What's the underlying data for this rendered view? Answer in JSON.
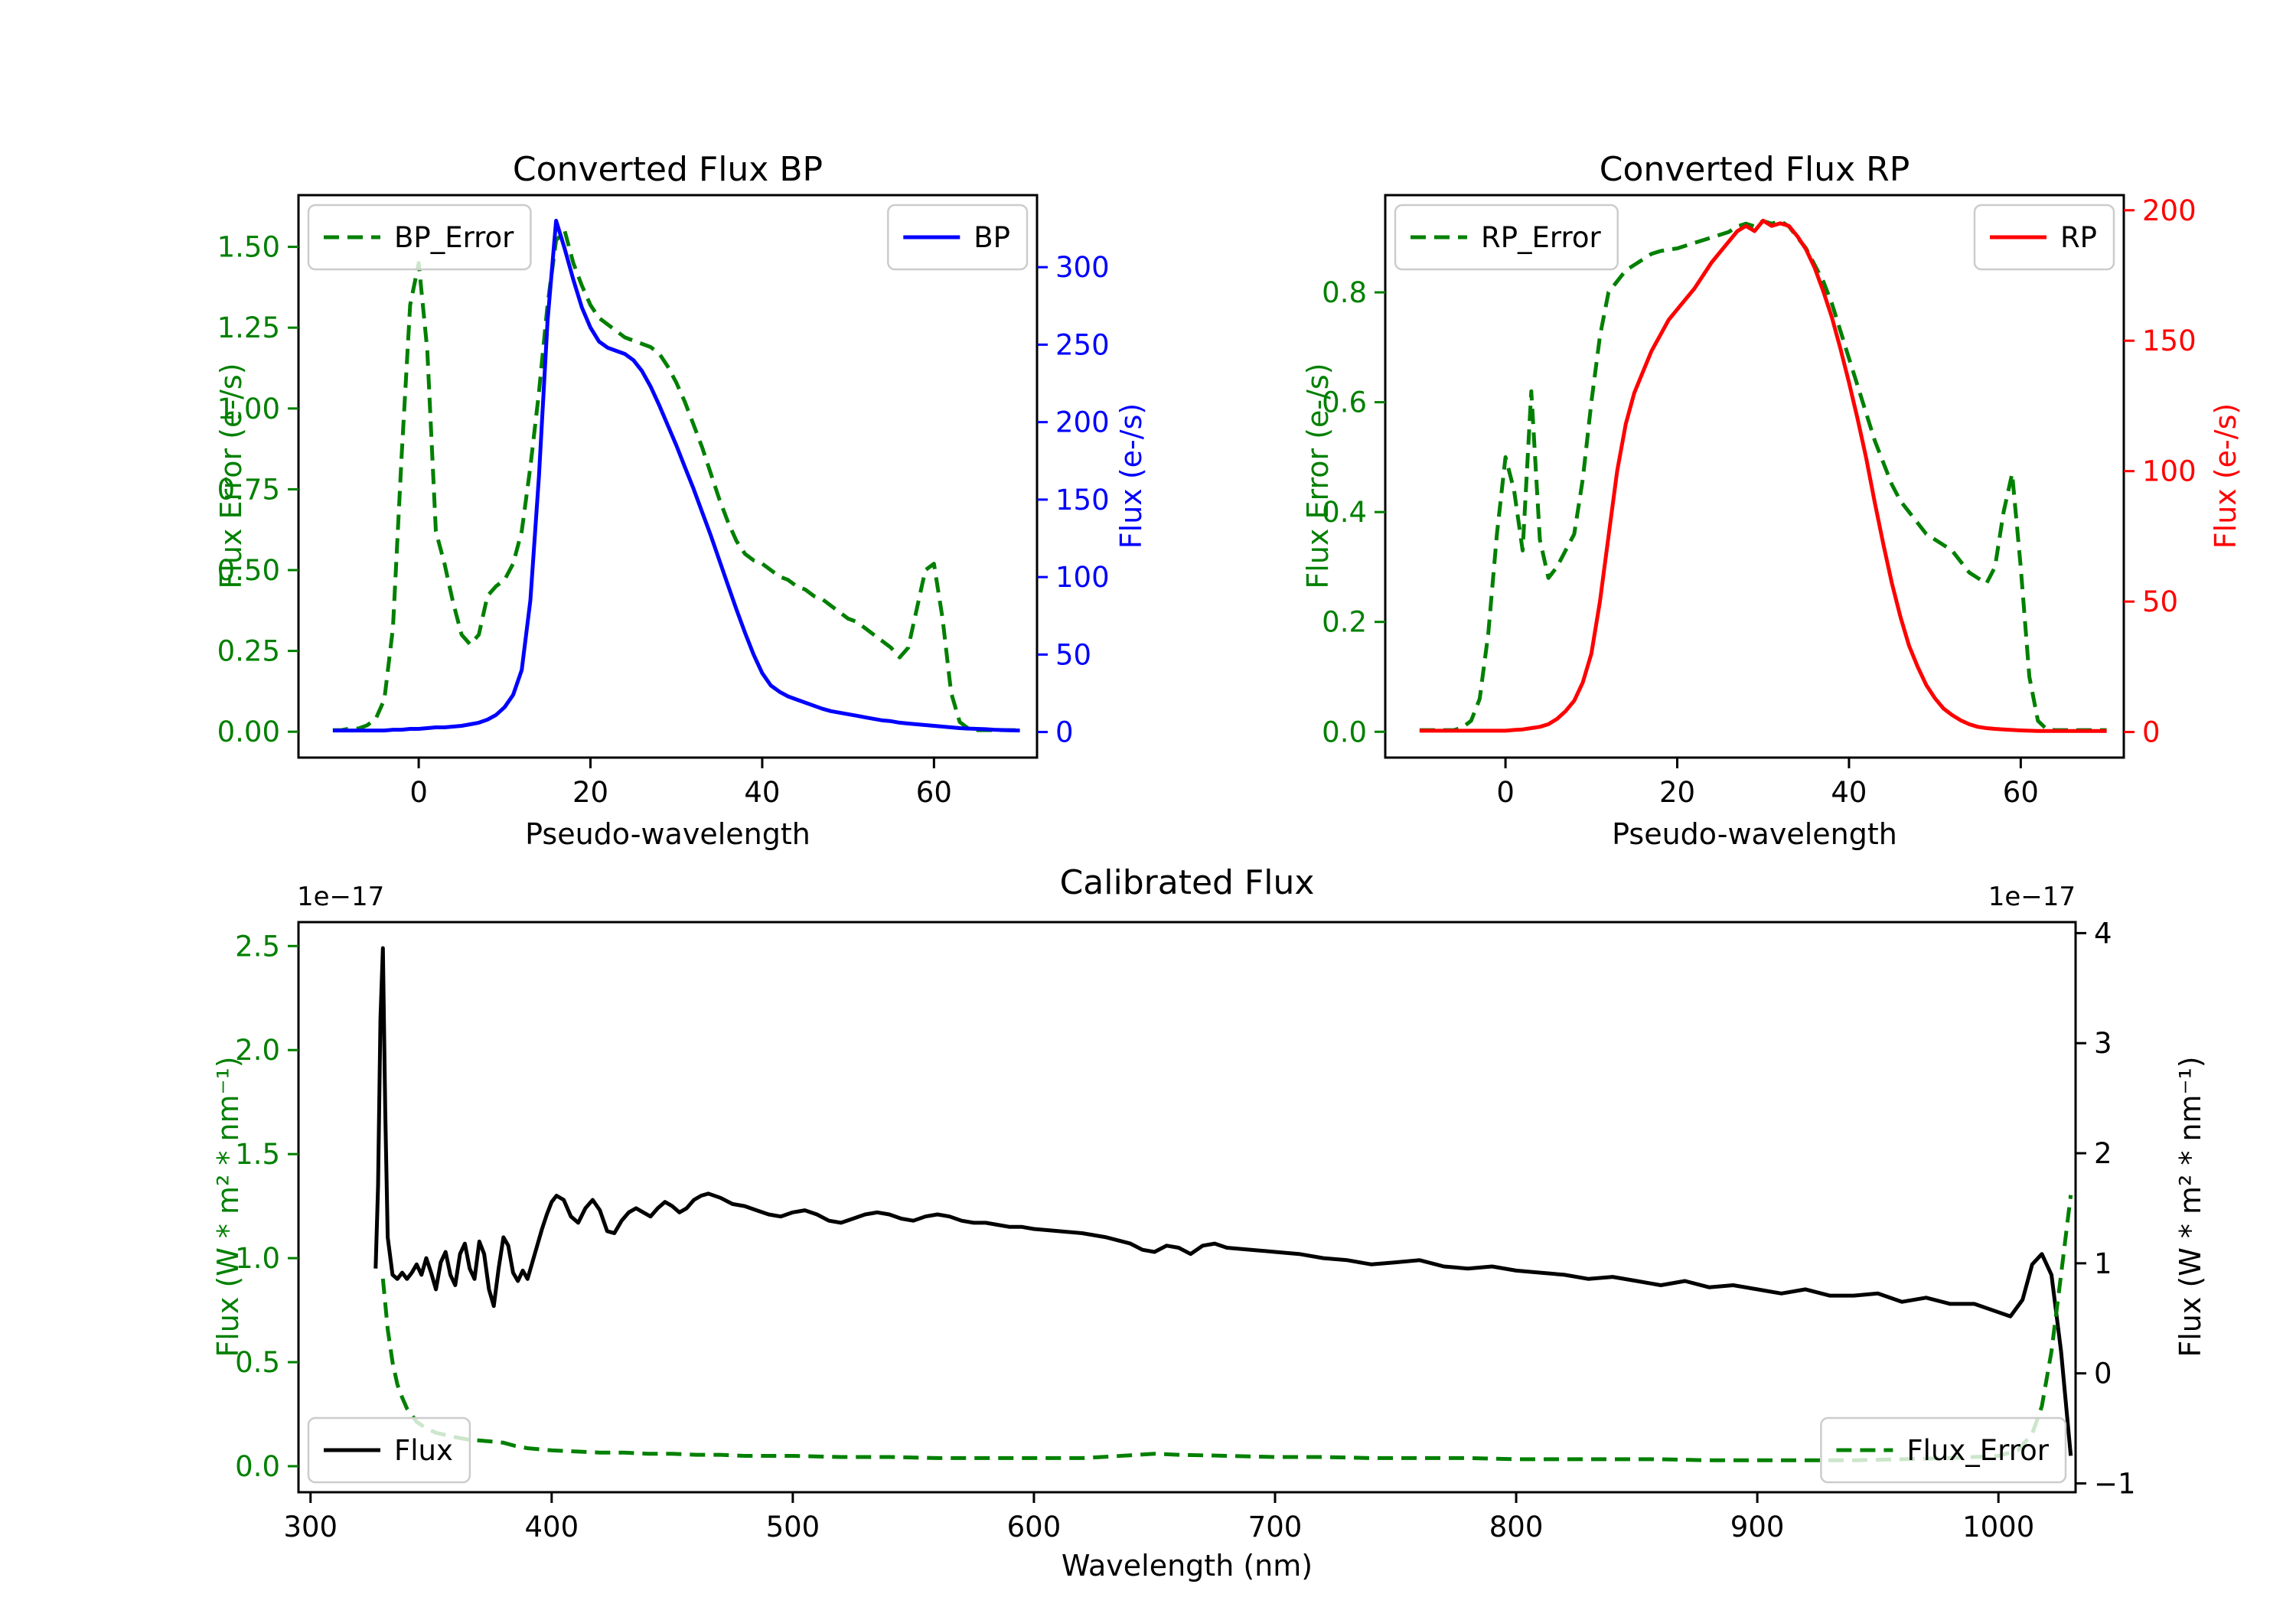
{
  "page": {
    "background": "#ffffff"
  },
  "chart_data": [
    {
      "id": "bp",
      "type": "line",
      "title": "Converted Flux BP",
      "xlabel": "Pseudo-wavelength",
      "xlim": [
        -14,
        72
      ],
      "xticks": [
        0,
        20,
        40,
        60
      ],
      "xtick_labels": [
        "0",
        "20",
        "40",
        "60"
      ],
      "grid": false,
      "left_axis": {
        "label": "Flux Error (e-/s)",
        "color": "#008000",
        "lim": [
          -0.08,
          1.66
        ],
        "ticks": [
          0,
          0.25,
          0.5,
          0.75,
          1.0,
          1.25,
          1.5
        ],
        "tick_labels": [
          "0.00",
          "0.25",
          "0.50",
          "0.75",
          "1.00",
          "1.25",
          "1.50"
        ]
      },
      "right_axis": {
        "label": "Flux (e-/s)",
        "color": "#0000ff",
        "lim": [
          -16.5,
          346.5
        ],
        "ticks": [
          0,
          50,
          100,
          150,
          200,
          250,
          300
        ],
        "tick_labels": [
          "0",
          "50",
          "100",
          "150",
          "200",
          "250",
          "300"
        ]
      },
      "series": [
        {
          "name": "BP_Error",
          "axis": "left",
          "color": "#008000",
          "dashed": true,
          "x_start": -10,
          "x_step": 1,
          "y": [
            0.005,
            0.005,
            0.01,
            0.01,
            0.02,
            0.04,
            0.1,
            0.32,
            0.85,
            1.32,
            1.45,
            1.18,
            0.62,
            0.52,
            0.4,
            0.3,
            0.27,
            0.3,
            0.42,
            0.45,
            0.47,
            0.52,
            0.62,
            0.82,
            1.05,
            1.32,
            1.52,
            1.55,
            1.45,
            1.38,
            1.32,
            1.28,
            1.26,
            1.24,
            1.22,
            1.21,
            1.2,
            1.19,
            1.17,
            1.13,
            1.08,
            1.02,
            0.95,
            0.88,
            0.8,
            0.72,
            0.65,
            0.59,
            0.55,
            0.53,
            0.52,
            0.5,
            0.48,
            0.47,
            0.45,
            0.44,
            0.42,
            0.41,
            0.39,
            0.37,
            0.35,
            0.34,
            0.32,
            0.3,
            0.28,
            0.26,
            0.23,
            0.26,
            0.38,
            0.5,
            0.52,
            0.35,
            0.12,
            0.03,
            0.01,
            0.005,
            0.005,
            0.005,
            0.005,
            0.005,
            0.005
          ]
        },
        {
          "name": "BP",
          "axis": "right",
          "color": "#0000ff",
          "dashed": false,
          "x_start": -10,
          "x_step": 1,
          "y": [
            1,
            1,
            1,
            1,
            1,
            1,
            1,
            1.5,
            1.5,
            2,
            2,
            2.5,
            3,
            3,
            3.5,
            4,
            5,
            6,
            8,
            11,
            16,
            24,
            40,
            85,
            165,
            265,
            330,
            312,
            292,
            274,
            261,
            252,
            248,
            246,
            244,
            240,
            233,
            223,
            211,
            198,
            185,
            171,
            157,
            142,
            127,
            111,
            95,
            79,
            64,
            50,
            38,
            30,
            26,
            23,
            21,
            19,
            17,
            15,
            13.5,
            12.5,
            11.5,
            10.5,
            9.5,
            8.5,
            7.5,
            7,
            6,
            5.5,
            5,
            4.5,
            4,
            3.5,
            3,
            2.5,
            2.2,
            2,
            1.8,
            1.5,
            1.3,
            1.1,
            1
          ]
        }
      ],
      "legends": [
        {
          "label": "BP_Error",
          "series": 0,
          "corner": "top-left"
        },
        {
          "label": "BP",
          "series": 1,
          "corner": "top-right"
        }
      ]
    },
    {
      "id": "rp",
      "type": "line",
      "title": "Converted Flux RP",
      "xlabel": "Pseudo-wavelength",
      "xlim": [
        -14,
        72
      ],
      "xticks": [
        0,
        20,
        40,
        60
      ],
      "xtick_labels": [
        "0",
        "20",
        "40",
        "60"
      ],
      "grid": false,
      "left_axis": {
        "label": "Flux Error (e-/s)",
        "color": "#008000",
        "lim": [
          -0.047,
          0.977
        ],
        "ticks": [
          0,
          0.2,
          0.4,
          0.6,
          0.8
        ],
        "tick_labels": [
          "0.0",
          "0.2",
          "0.4",
          "0.6",
          "0.8"
        ]
      },
      "right_axis": {
        "label": "Flux (e-/s)",
        "color": "#ff0000",
        "lim": [
          -9.8,
          205.8
        ],
        "ticks": [
          0,
          50,
          100,
          150,
          200
        ],
        "tick_labels": [
          "0",
          "50",
          "100",
          "150",
          "200"
        ]
      },
      "series": [
        {
          "name": "RP_Error",
          "axis": "left",
          "color": "#008000",
          "dashed": true,
          "x_start": -10,
          "x_step": 1,
          "y": [
            0.003,
            0.003,
            0.003,
            0.003,
            0.003,
            0.008,
            0.02,
            0.06,
            0.18,
            0.36,
            0.5,
            0.44,
            0.33,
            0.62,
            0.35,
            0.28,
            0.3,
            0.33,
            0.36,
            0.46,
            0.6,
            0.72,
            0.8,
            0.82,
            0.84,
            0.85,
            0.86,
            0.87,
            0.875,
            0.878,
            0.88,
            0.885,
            0.89,
            0.895,
            0.9,
            0.905,
            0.91,
            0.92,
            0.925,
            0.92,
            0.93,
            0.925,
            0.93,
            0.92,
            0.9,
            0.88,
            0.85,
            0.82,
            0.78,
            0.73,
            0.68,
            0.63,
            0.58,
            0.53,
            0.49,
            0.45,
            0.42,
            0.4,
            0.38,
            0.36,
            0.35,
            0.34,
            0.33,
            0.31,
            0.29,
            0.28,
            0.27,
            0.3,
            0.4,
            0.47,
            0.3,
            0.1,
            0.02,
            0.005,
            0.003,
            0.003,
            0.003,
            0.003,
            0.003,
            0.003,
            0.003
          ]
        },
        {
          "name": "RP",
          "axis": "right",
          "color": "#ff0000",
          "dashed": false,
          "x_start": -10,
          "x_step": 1,
          "y": [
            0.5,
            0.5,
            0.5,
            0.5,
            0.5,
            0.5,
            0.5,
            0.5,
            0.5,
            0.5,
            0.5,
            0.8,
            1,
            1.5,
            2,
            3,
            5,
            8,
            12,
            19,
            30,
            50,
            75,
            100,
            118,
            130,
            138,
            146,
            152,
            158,
            162,
            166,
            170,
            175,
            180,
            184,
            188,
            192,
            194,
            192,
            196,
            194,
            195,
            194,
            190,
            185,
            178,
            169,
            159,
            147,
            134,
            120,
            105,
            88,
            72,
            57,
            44,
            33,
            25,
            18,
            13,
            9,
            6.5,
            4.5,
            3,
            2,
            1.5,
            1.2,
            1,
            0.8,
            0.6,
            0.5,
            0.4,
            0.4,
            0.4,
            0.4,
            0.4,
            0.4,
            0.4,
            0.4,
            0.4
          ]
        }
      ],
      "legends": [
        {
          "label": "RP_Error",
          "series": 0,
          "corner": "top-left"
        },
        {
          "label": "RP",
          "series": 1,
          "corner": "top-right"
        }
      ]
    },
    {
      "id": "calibrated",
      "type": "line",
      "title": "Calibrated Flux",
      "xlabel": "Wavelength (nm)",
      "xlim": [
        295,
        1032
      ],
      "xticks": [
        300,
        400,
        500,
        600,
        700,
        800,
        900,
        1000
      ],
      "xtick_labels": [
        "300",
        "400",
        "500",
        "600",
        "700",
        "800",
        "900",
        "1000"
      ],
      "grid": false,
      "left_axis": {
        "label": "Flux (W * m² * nm⁻¹)",
        "color": "#008000",
        "lim": [
          -0.125,
          2.615
        ],
        "ticks": [
          0,
          0.5,
          1.0,
          1.5,
          2.0,
          2.5
        ],
        "tick_labels": [
          "0.0",
          "0.5",
          "1.0",
          "1.5",
          "2.0",
          "2.5"
        ],
        "offset_text": "1e−17"
      },
      "right_axis": {
        "label": "Flux (W * m² * nm⁻¹)",
        "color": "#000000",
        "lim": [
          -1.08,
          4.1
        ],
        "ticks": [
          -1,
          0,
          1,
          2,
          3,
          4
        ],
        "tick_labels": [
          "−1",
          "0",
          "1",
          "2",
          "3",
          "4"
        ],
        "offset_text": "1e−17"
      },
      "series": [
        {
          "name": "Flux",
          "axis": "left",
          "color": "#000000",
          "dashed": false,
          "x": [
            327,
            328,
            329,
            330,
            331,
            332,
            334,
            336,
            338,
            340,
            342,
            344,
            346,
            348,
            350,
            352,
            354,
            356,
            358,
            360,
            362,
            364,
            366,
            368,
            370,
            372,
            374,
            376,
            378,
            380,
            382,
            384,
            386,
            388,
            390,
            392,
            394,
            396,
            398,
            400,
            402,
            405,
            408,
            411,
            414,
            417,
            420,
            423,
            426,
            429,
            432,
            435,
            438,
            441,
            444,
            447,
            450,
            453,
            456,
            459,
            462,
            465,
            470,
            475,
            480,
            485,
            490,
            495,
            500,
            505,
            510,
            515,
            520,
            525,
            530,
            535,
            540,
            545,
            550,
            555,
            560,
            565,
            570,
            575,
            580,
            585,
            590,
            595,
            600,
            610,
            620,
            630,
            640,
            645,
            650,
            655,
            660,
            665,
            670,
            675,
            680,
            690,
            700,
            710,
            720,
            730,
            740,
            750,
            760,
            770,
            780,
            790,
            800,
            810,
            820,
            830,
            840,
            850,
            860,
            870,
            880,
            890,
            900,
            910,
            920,
            930,
            940,
            950,
            960,
            970,
            980,
            990,
            1000,
            1005,
            1010,
            1014,
            1018,
            1022,
            1026,
            1030
          ],
          "y": [
            0.95,
            1.35,
            2.15,
            2.49,
            1.7,
            1.1,
            0.92,
            0.9,
            0.93,
            0.9,
            0.93,
            0.97,
            0.92,
            1.0,
            0.93,
            0.85,
            0.98,
            1.03,
            0.92,
            0.87,
            1.02,
            1.07,
            0.95,
            0.9,
            1.08,
            1.02,
            0.85,
            0.77,
            0.95,
            1.1,
            1.06,
            0.93,
            0.89,
            0.94,
            0.9,
            0.98,
            1.06,
            1.14,
            1.21,
            1.27,
            1.3,
            1.28,
            1.2,
            1.17,
            1.24,
            1.28,
            1.23,
            1.13,
            1.12,
            1.18,
            1.22,
            1.24,
            1.22,
            1.2,
            1.24,
            1.27,
            1.25,
            1.22,
            1.24,
            1.28,
            1.3,
            1.31,
            1.29,
            1.26,
            1.25,
            1.23,
            1.21,
            1.2,
            1.22,
            1.23,
            1.21,
            1.18,
            1.17,
            1.19,
            1.21,
            1.22,
            1.21,
            1.19,
            1.18,
            1.2,
            1.21,
            1.2,
            1.18,
            1.17,
            1.17,
            1.16,
            1.15,
            1.15,
            1.14,
            1.13,
            1.12,
            1.1,
            1.07,
            1.04,
            1.03,
            1.06,
            1.05,
            1.02,
            1.06,
            1.07,
            1.05,
            1.04,
            1.03,
            1.02,
            1.0,
            0.99,
            0.97,
            0.98,
            0.99,
            0.96,
            0.95,
            0.96,
            0.94,
            0.93,
            0.92,
            0.9,
            0.91,
            0.89,
            0.87,
            0.89,
            0.86,
            0.87,
            0.85,
            0.83,
            0.85,
            0.82,
            0.82,
            0.83,
            0.79,
            0.81,
            0.78,
            0.78,
            0.74,
            0.72,
            0.8,
            0.97,
            1.02,
            0.92,
            0.55,
            0.05
          ]
        },
        {
          "name": "Flux_Error",
          "axis": "right",
          "color": "#008000",
          "dashed": true,
          "x": [
            330,
            332,
            334,
            336,
            338,
            340,
            344,
            348,
            352,
            356,
            360,
            365,
            370,
            375,
            380,
            385,
            390,
            395,
            400,
            410,
            420,
            430,
            440,
            450,
            460,
            470,
            480,
            490,
            500,
            520,
            540,
            560,
            580,
            600,
            620,
            640,
            650,
            660,
            680,
            700,
            720,
            740,
            760,
            780,
            800,
            820,
            840,
            860,
            880,
            900,
            920,
            940,
            960,
            980,
            1000,
            1008,
            1014,
            1018,
            1022,
            1026,
            1030
          ],
          "y": [
            0.86,
            0.4,
            0.1,
            -0.1,
            -0.22,
            -0.32,
            -0.44,
            -0.5,
            -0.54,
            -0.56,
            -0.58,
            -0.6,
            -0.61,
            -0.62,
            -0.63,
            -0.66,
            -0.68,
            -0.69,
            -0.7,
            -0.71,
            -0.72,
            -0.72,
            -0.73,
            -0.73,
            -0.74,
            -0.74,
            -0.75,
            -0.75,
            -0.75,
            -0.76,
            -0.76,
            -0.77,
            -0.77,
            -0.77,
            -0.77,
            -0.745,
            -0.73,
            -0.74,
            -0.75,
            -0.76,
            -0.76,
            -0.77,
            -0.77,
            -0.77,
            -0.78,
            -0.78,
            -0.78,
            -0.78,
            -0.79,
            -0.79,
            -0.79,
            -0.79,
            -0.78,
            -0.77,
            -0.75,
            -0.7,
            -0.55,
            -0.3,
            0.2,
            0.9,
            1.62
          ]
        }
      ],
      "legends": [
        {
          "label": "Flux",
          "series": 0,
          "corner": "bottom-left"
        },
        {
          "label": "Flux_Error",
          "series": 1,
          "corner": "bottom-right"
        }
      ]
    }
  ]
}
